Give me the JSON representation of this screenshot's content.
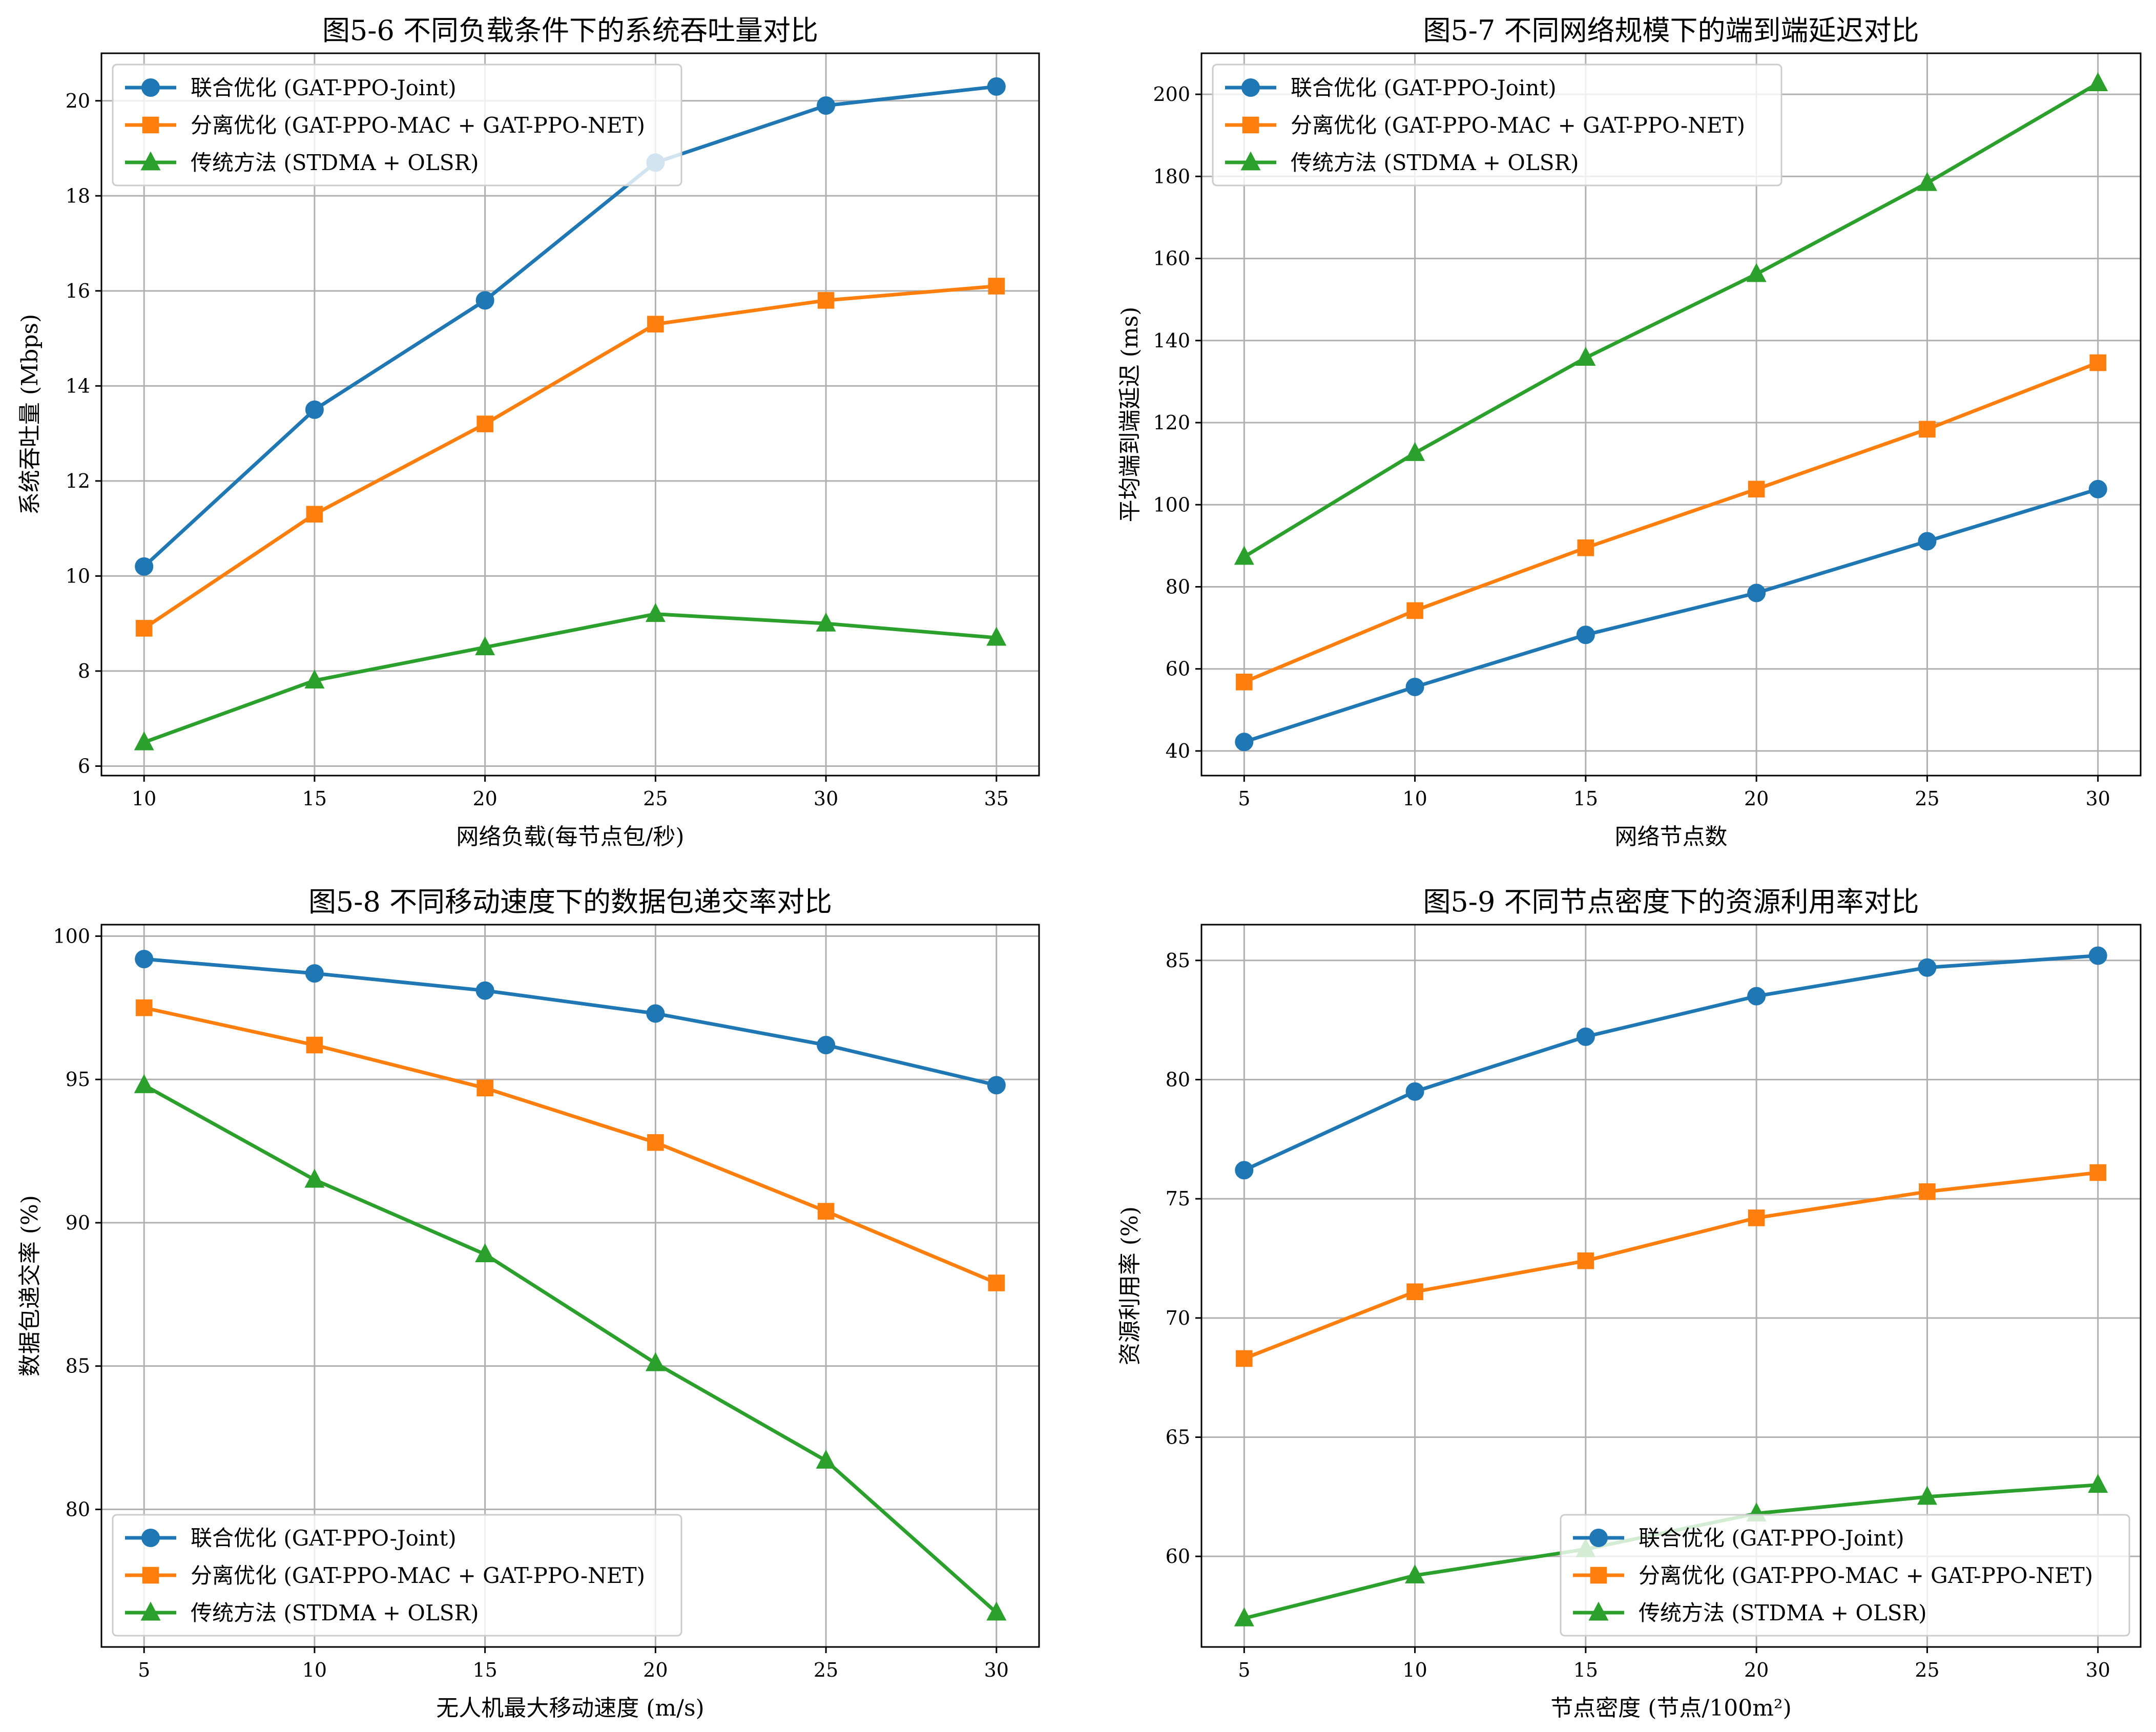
{
  "legend_entries": [
    "联合优化 (GAT-PPO-Joint)",
    "分离优化 (GAT-PPO-MAC + GAT-PPO-NET)",
    "传统方法 (STDMA + OLSR)"
  ],
  "colors": {
    "joint": "#1f77b4",
    "separate": "#ff7f0e",
    "traditional": "#2ca02c",
    "grid": "#b0b0b0",
    "axes": "#000000"
  },
  "chart_data": [
    {
      "type": "line",
      "title": "图5-6 不同负载条件下的系统吞吐量对比",
      "xlabel": "网络负载(每节点包/秒)",
      "ylabel": "系统吞吐量 (Mbps)",
      "x": [
        10,
        15,
        20,
        25,
        30,
        35
      ],
      "xlim": [
        8.75,
        36.25
      ],
      "ylim": [
        5.8,
        21.0
      ],
      "xticks": [
        10,
        15,
        20,
        25,
        30,
        35
      ],
      "yticks": [
        6,
        8,
        10,
        12,
        14,
        16,
        18,
        20
      ],
      "grid": true,
      "legend": "upper left",
      "series": [
        {
          "name": "联合优化 (GAT-PPO-Joint)",
          "marker": "circle",
          "color": "#1f77b4",
          "values": [
            10.2,
            13.5,
            15.8,
            18.7,
            19.9,
            20.3
          ]
        },
        {
          "name": "分离优化 (GAT-PPO-MAC + GAT-PPO-NET)",
          "marker": "square",
          "color": "#ff7f0e",
          "values": [
            8.9,
            11.3,
            13.2,
            15.3,
            15.8,
            16.1
          ]
        },
        {
          "name": "传统方法 (STDMA + OLSR)",
          "marker": "triangle",
          "color": "#2ca02c",
          "values": [
            6.5,
            7.8,
            8.5,
            9.2,
            9.0,
            8.7
          ]
        }
      ]
    },
    {
      "type": "line",
      "title": "图5-7 不同网络规模下的端到端延迟对比",
      "xlabel": "网络节点数",
      "ylabel": "平均端到端延迟 (ms)",
      "x": [
        5,
        10,
        15,
        20,
        25,
        30
      ],
      "xlim": [
        3.75,
        31.25
      ],
      "ylim": [
        34.0,
        210.0
      ],
      "xticks": [
        5,
        10,
        15,
        20,
        25,
        30
      ],
      "yticks": [
        40,
        60,
        80,
        100,
        120,
        140,
        160,
        180,
        200
      ],
      "grid": true,
      "legend": "upper left",
      "series": [
        {
          "name": "联合优化 (GAT-PPO-Joint)",
          "marker": "circle",
          "color": "#1f77b4",
          "values": [
            42.2,
            55.6,
            68.3,
            78.5,
            91.1,
            103.8
          ]
        },
        {
          "name": "分离优化 (GAT-PPO-MAC + GAT-PPO-NET)",
          "marker": "square",
          "color": "#ff7f0e",
          "values": [
            56.8,
            74.2,
            89.5,
            103.8,
            118.4,
            134.6
          ]
        },
        {
          "name": "传统方法 (STDMA + OLSR)",
          "marker": "triangle",
          "color": "#2ca02c",
          "values": [
            87.3,
            112.6,
            135.8,
            156.2,
            178.4,
            202.7
          ]
        }
      ]
    },
    {
      "type": "line",
      "title": "图5-8 不同移动速度下的数据包递交率对比",
      "xlabel": "无人机最大移动速度 (m/s)",
      "ylabel": "数据包递交率 (%)",
      "x": [
        5,
        10,
        15,
        20,
        25,
        30
      ],
      "xlim": [
        3.75,
        31.25
      ],
      "ylim": [
        75.2,
        100.4
      ],
      "xticks": [
        5,
        10,
        15,
        20,
        25,
        30
      ],
      "yticks": [
        80,
        85,
        90,
        95,
        100
      ],
      "grid": true,
      "legend": "lower left",
      "series": [
        {
          "name": "联合优化 (GAT-PPO-Joint)",
          "marker": "circle",
          "color": "#1f77b4",
          "values": [
            99.2,
            98.7,
            98.1,
            97.3,
            96.2,
            94.8
          ]
        },
        {
          "name": "分离优化 (GAT-PPO-MAC + GAT-PPO-NET)",
          "marker": "square",
          "color": "#ff7f0e",
          "values": [
            97.5,
            96.2,
            94.7,
            92.8,
            90.4,
            87.9
          ]
        },
        {
          "name": "传统方法 (STDMA + OLSR)",
          "marker": "triangle",
          "color": "#2ca02c",
          "values": [
            94.8,
            91.5,
            88.9,
            85.1,
            81.7,
            76.4
          ]
        }
      ]
    },
    {
      "type": "line",
      "title": "图5-9 不同节点密度下的资源利用率对比",
      "xlabel": "节点密度 (节点/100m²)",
      "ylabel": "资源利用率 (%)",
      "x": [
        5,
        10,
        15,
        20,
        25,
        30
      ],
      "xlim": [
        3.75,
        31.25
      ],
      "ylim": [
        56.2,
        86.5
      ],
      "xticks": [
        5,
        10,
        15,
        20,
        25,
        30
      ],
      "yticks": [
        60,
        65,
        70,
        75,
        80,
        85
      ],
      "grid": true,
      "legend": "lower right",
      "series": [
        {
          "name": "联合优化 (GAT-PPO-Joint)",
          "marker": "circle",
          "color": "#1f77b4",
          "values": [
            76.2,
            79.5,
            81.8,
            83.5,
            84.7,
            85.2
          ]
        },
        {
          "name": "分离优化 (GAT-PPO-MAC + GAT-PPO-NET)",
          "marker": "square",
          "color": "#ff7f0e",
          "values": [
            68.3,
            71.1,
            72.4,
            74.2,
            75.3,
            76.1
          ]
        },
        {
          "name": "传统方法 (STDMA + OLSR)",
          "marker": "triangle",
          "color": "#2ca02c",
          "values": [
            57.4,
            59.2,
            60.3,
            61.8,
            62.5,
            63.0
          ]
        }
      ]
    }
  ]
}
